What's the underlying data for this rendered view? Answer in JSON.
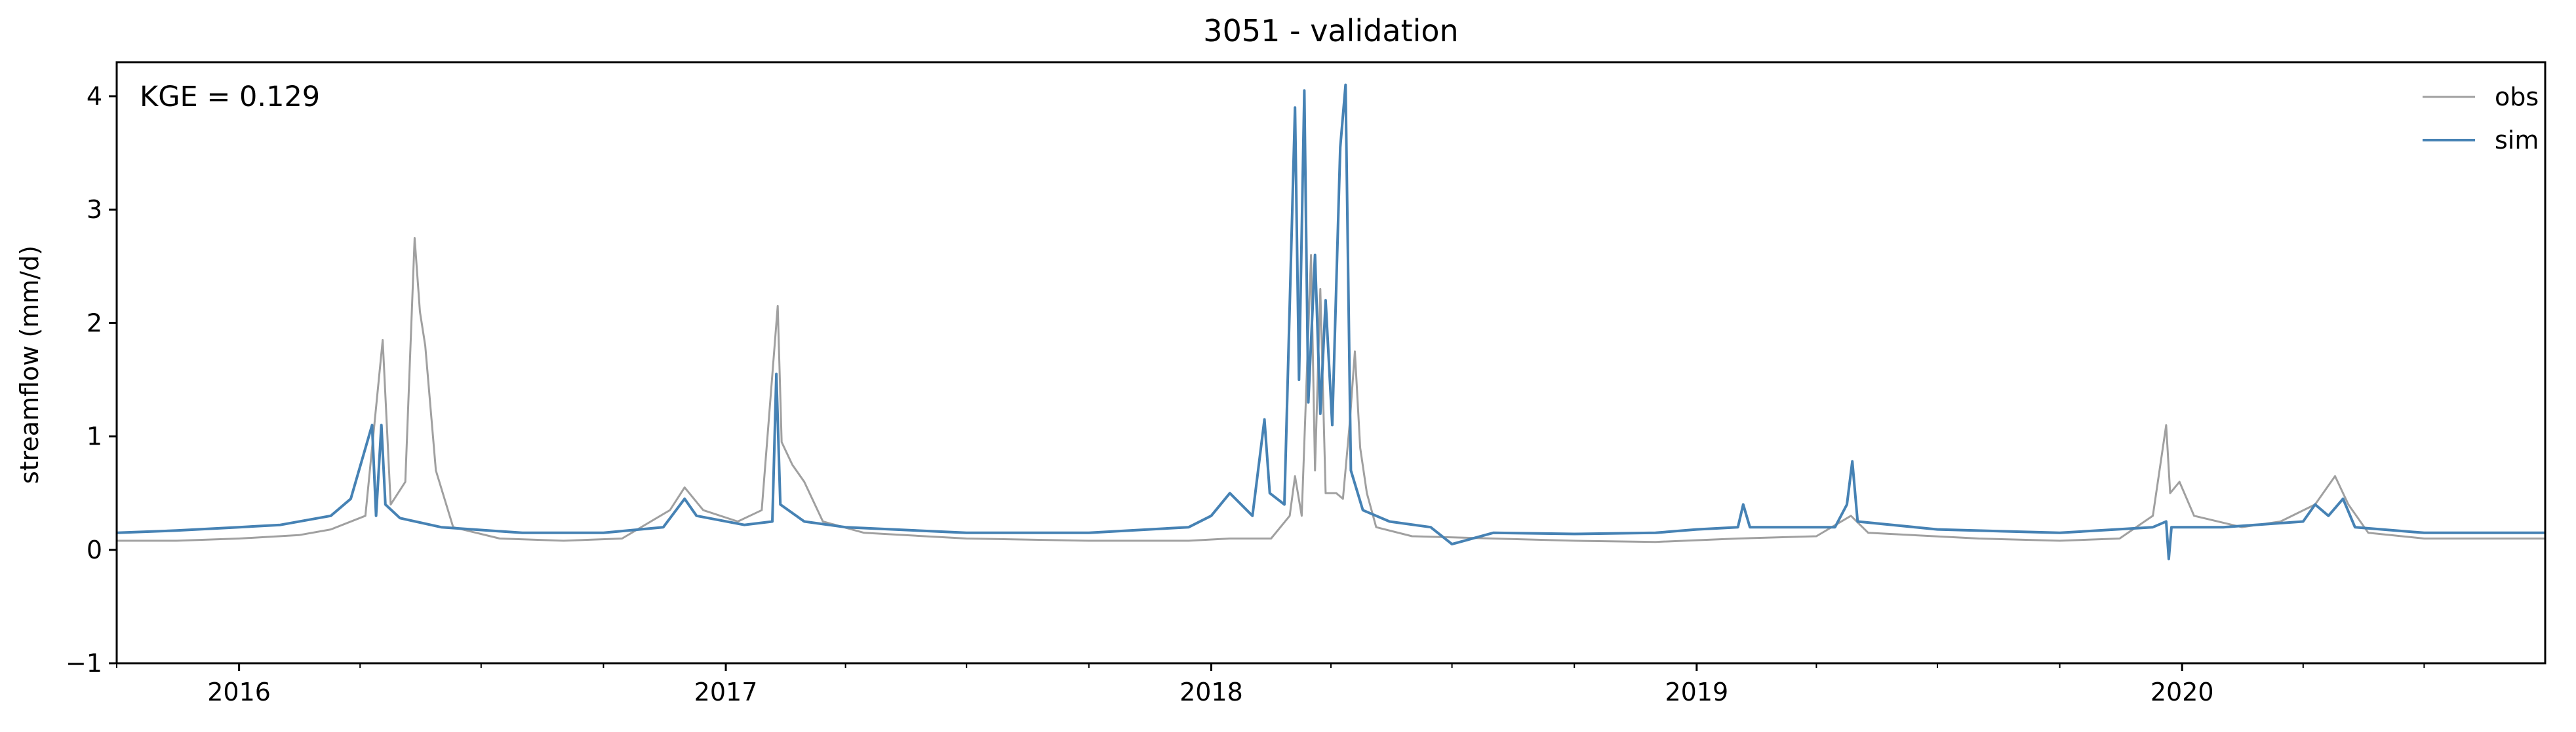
{
  "chart_data": {
    "type": "line",
    "title": "3051 - validation",
    "xlabel": "",
    "ylabel": "streamflow (mm/d)",
    "annotation": "KGE = 0.129",
    "xlim": [
      "2015-10-01",
      "2020-09-30"
    ],
    "ylim": [
      -1,
      4.3
    ],
    "yticks": [
      -1,
      0,
      1,
      2,
      3,
      4
    ],
    "ytick_labels": [
      "−1",
      "0",
      "1",
      "2",
      "3",
      "4"
    ],
    "xticks": [
      "2016-01-01",
      "2017-01-01",
      "2018-01-01",
      "2019-01-01",
      "2020-01-01"
    ],
    "xtick_labels": [
      "2016",
      "2017",
      "2018",
      "2019",
      "2020"
    ],
    "legend": {
      "position": "upper right",
      "entries": [
        "obs",
        "sim"
      ]
    },
    "grid": false,
    "series": [
      {
        "name": "obs",
        "color": "#a0a0a0",
        "points": [
          [
            "2015-10-01",
            0.08
          ],
          [
            "2015-11-15",
            0.08
          ],
          [
            "2016-01-01",
            0.1
          ],
          [
            "2016-02-15",
            0.13
          ],
          [
            "2016-03-10",
            0.18
          ],
          [
            "2016-04-05",
            0.3
          ],
          [
            "2016-04-18",
            1.85
          ],
          [
            "2016-04-24",
            0.4
          ],
          [
            "2016-05-05",
            0.6
          ],
          [
            "2016-05-12",
            2.75
          ],
          [
            "2016-05-16",
            2.1
          ],
          [
            "2016-05-20",
            1.8
          ],
          [
            "2016-05-28",
            0.7
          ],
          [
            "2016-06-10",
            0.2
          ],
          [
            "2016-07-15",
            0.1
          ],
          [
            "2016-09-01",
            0.08
          ],
          [
            "2016-10-15",
            0.1
          ],
          [
            "2016-11-20",
            0.35
          ],
          [
            "2016-12-01",
            0.55
          ],
          [
            "2016-12-15",
            0.35
          ],
          [
            "2017-01-10",
            0.25
          ],
          [
            "2017-01-28",
            0.35
          ],
          [
            "2017-02-09",
            2.15
          ],
          [
            "2017-02-12",
            0.95
          ],
          [
            "2017-02-20",
            0.75
          ],
          [
            "2017-03-01",
            0.6
          ],
          [
            "2017-03-15",
            0.25
          ],
          [
            "2017-04-15",
            0.15
          ],
          [
            "2017-07-01",
            0.1
          ],
          [
            "2017-10-01",
            0.08
          ],
          [
            "2017-12-15",
            0.08
          ],
          [
            "2018-01-15",
            0.1
          ],
          [
            "2018-02-15",
            0.1
          ],
          [
            "2018-03-01",
            0.3
          ],
          [
            "2018-03-05",
            0.65
          ],
          [
            "2018-03-10",
            0.3
          ],
          [
            "2018-03-14",
            1.6
          ],
          [
            "2018-03-17",
            2.6
          ],
          [
            "2018-03-20",
            0.7
          ],
          [
            "2018-03-24",
            2.3
          ],
          [
            "2018-03-28",
            0.5
          ],
          [
            "2018-04-05",
            0.5
          ],
          [
            "2018-04-10",
            0.45
          ],
          [
            "2018-04-15",
            1.1
          ],
          [
            "2018-04-19",
            1.75
          ],
          [
            "2018-04-23",
            0.9
          ],
          [
            "2018-04-28",
            0.5
          ],
          [
            "2018-05-05",
            0.2
          ],
          [
            "2018-06-01",
            0.12
          ],
          [
            "2018-08-01",
            0.1
          ],
          [
            "2018-10-01",
            0.08
          ],
          [
            "2018-12-01",
            0.07
          ],
          [
            "2019-02-01",
            0.1
          ],
          [
            "2019-04-01",
            0.12
          ],
          [
            "2019-04-27",
            0.3
          ],
          [
            "2019-05-10",
            0.15
          ],
          [
            "2019-08-01",
            0.1
          ],
          [
            "2019-10-01",
            0.08
          ],
          [
            "2019-11-15",
            0.1
          ],
          [
            "2019-12-10",
            0.3
          ],
          [
            "2019-12-20",
            1.1
          ],
          [
            "2019-12-23",
            0.5
          ],
          [
            "2019-12-30",
            0.6
          ],
          [
            "2020-01-10",
            0.3
          ],
          [
            "2020-02-15",
            0.2
          ],
          [
            "2020-03-15",
            0.25
          ],
          [
            "2020-04-10",
            0.4
          ],
          [
            "2020-04-25",
            0.65
          ],
          [
            "2020-05-05",
            0.4
          ],
          [
            "2020-05-20",
            0.15
          ],
          [
            "2020-07-01",
            0.1
          ],
          [
            "2020-09-30",
            0.1
          ]
        ]
      },
      {
        "name": "sim",
        "color": "#4682b4",
        "points": [
          [
            "2015-10-01",
            0.15
          ],
          [
            "2015-11-15",
            0.17
          ],
          [
            "2016-01-01",
            0.2
          ],
          [
            "2016-02-01",
            0.22
          ],
          [
            "2016-03-10",
            0.3
          ],
          [
            "2016-03-25",
            0.45
          ],
          [
            "2016-04-10",
            1.1
          ],
          [
            "2016-04-13",
            0.3
          ],
          [
            "2016-04-17",
            1.1
          ],
          [
            "2016-04-20",
            0.4
          ],
          [
            "2016-05-01",
            0.28
          ],
          [
            "2016-06-01",
            0.2
          ],
          [
            "2016-08-01",
            0.15
          ],
          [
            "2016-10-01",
            0.15
          ],
          [
            "2016-11-15",
            0.2
          ],
          [
            "2016-12-01",
            0.45
          ],
          [
            "2016-12-10",
            0.3
          ],
          [
            "2017-01-15",
            0.22
          ],
          [
            "2017-02-05",
            0.25
          ],
          [
            "2017-02-08",
            1.55
          ],
          [
            "2017-02-11",
            0.4
          ],
          [
            "2017-03-01",
            0.25
          ],
          [
            "2017-04-01",
            0.2
          ],
          [
            "2017-07-01",
            0.15
          ],
          [
            "2017-10-01",
            0.15
          ],
          [
            "2017-12-15",
            0.2
          ],
          [
            "2018-01-01",
            0.3
          ],
          [
            "2018-01-15",
            0.5
          ],
          [
            "2018-02-01",
            0.3
          ],
          [
            "2018-02-10",
            1.15
          ],
          [
            "2018-02-14",
            0.5
          ],
          [
            "2018-02-25",
            0.4
          ],
          [
            "2018-03-05",
            3.9
          ],
          [
            "2018-03-08",
            1.5
          ],
          [
            "2018-03-12",
            4.05
          ],
          [
            "2018-03-15",
            1.3
          ],
          [
            "2018-03-20",
            2.6
          ],
          [
            "2018-03-24",
            1.2
          ],
          [
            "2018-03-28",
            2.2
          ],
          [
            "2018-04-02",
            1.1
          ],
          [
            "2018-04-08",
            3.55
          ],
          [
            "2018-04-12",
            4.1
          ],
          [
            "2018-04-16",
            0.7
          ],
          [
            "2018-04-25",
            0.35
          ],
          [
            "2018-05-15",
            0.25
          ],
          [
            "2018-06-15",
            0.2
          ],
          [
            "2018-07-01",
            0.05
          ],
          [
            "2018-08-01",
            0.15
          ],
          [
            "2018-10-01",
            0.14
          ],
          [
            "2018-12-01",
            0.15
          ],
          [
            "2019-01-01",
            0.18
          ],
          [
            "2019-02-01",
            0.2
          ],
          [
            "2019-02-05",
            0.4
          ],
          [
            "2019-02-10",
            0.2
          ],
          [
            "2019-04-15",
            0.2
          ],
          [
            "2019-04-24",
            0.4
          ],
          [
            "2019-04-28",
            0.78
          ],
          [
            "2019-05-02",
            0.25
          ],
          [
            "2019-07-01",
            0.18
          ],
          [
            "2019-10-01",
            0.15
          ],
          [
            "2019-12-10",
            0.2
          ],
          [
            "2019-12-20",
            0.25
          ],
          [
            "2019-12-22",
            -0.08
          ],
          [
            "2019-12-24",
            0.2
          ],
          [
            "2020-02-01",
            0.2
          ],
          [
            "2020-04-01",
            0.25
          ],
          [
            "2020-04-10",
            0.4
          ],
          [
            "2020-04-20",
            0.3
          ],
          [
            "2020-05-01",
            0.45
          ],
          [
            "2020-05-10",
            0.2
          ],
          [
            "2020-07-01",
            0.15
          ],
          [
            "2020-09-30",
            0.15
          ]
        ]
      }
    ]
  }
}
